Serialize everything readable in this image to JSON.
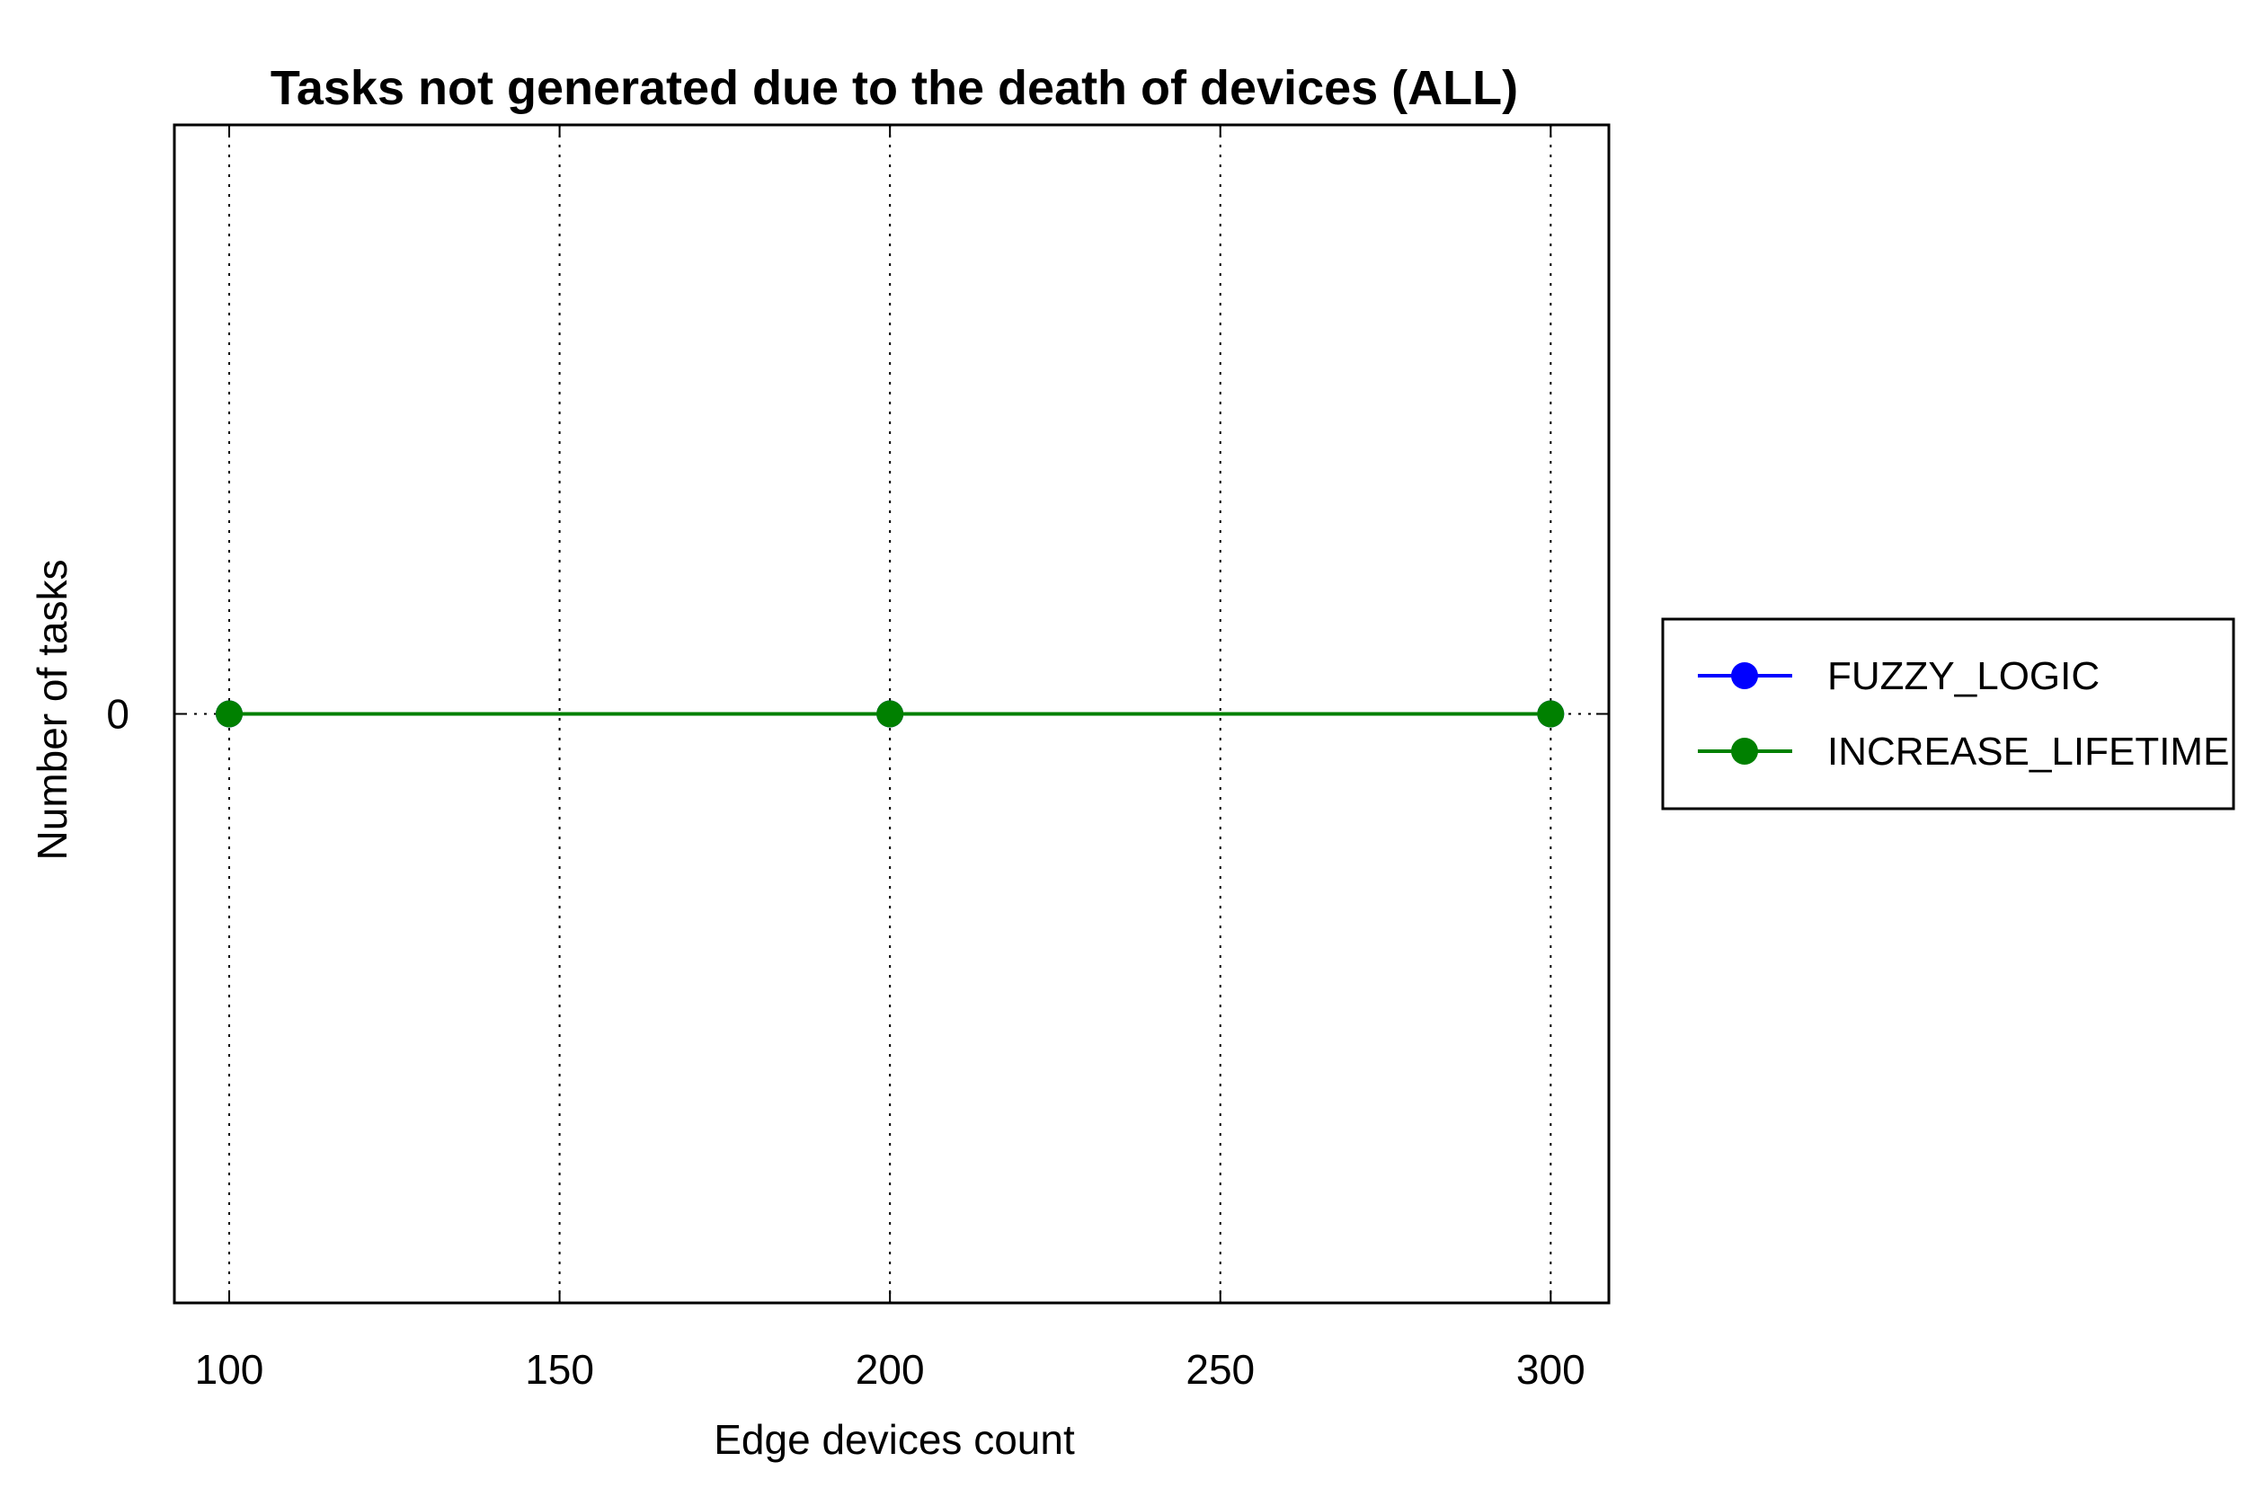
{
  "chart_data": {
    "type": "line",
    "title": "Tasks not generated due to the death of devices (ALL)",
    "xlabel": "Edge devices count",
    "ylabel": "Number of tasks",
    "x": [
      100,
      200,
      300
    ],
    "xticks": [
      100,
      150,
      200,
      250,
      300
    ],
    "xtick_labels": [
      "100",
      "150",
      "200",
      "250",
      "300"
    ],
    "xlim": [
      91.7,
      308.8
    ],
    "yticks": [
      0
    ],
    "ytick_labels": [
      "0"
    ],
    "ylim": [
      -1,
      1
    ],
    "grid": "x-dotted",
    "legend_position": "outside-right",
    "series": [
      {
        "name": "FUZZY_LOGIC",
        "values": [
          0,
          0,
          0
        ],
        "color": "#0000ff"
      },
      {
        "name": "INCREASE_LIFETIME",
        "values": [
          0,
          0,
          0
        ],
        "color": "#008000"
      }
    ]
  }
}
